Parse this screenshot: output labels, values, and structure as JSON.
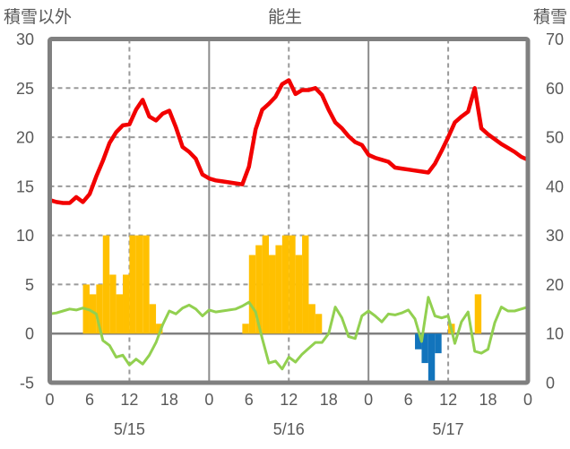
{
  "header": {
    "left_axis_title": "積雪以外",
    "chart_title": "能生",
    "right_axis_title": "積雪"
  },
  "chart_data": {
    "type": "combo",
    "title": "能生",
    "left_axis": {
      "title": "積雪以外",
      "min": -5,
      "max": 30,
      "tick_step": 5,
      "tick_labels": [
        "30",
        "25",
        "20",
        "15",
        "10",
        "5",
        "0",
        "-5"
      ]
    },
    "right_axis": {
      "title": "積雪",
      "min": 0,
      "max": 70,
      "tick_step": 10,
      "tick_labels": [
        "70",
        "60",
        "50",
        "40",
        "30",
        "20",
        "10",
        "0"
      ]
    },
    "x_axis": {
      "total_hours": 72,
      "tick_interval_hours": 6,
      "tick_labels": [
        "0",
        "6",
        "12",
        "18",
        "0",
        "6",
        "12",
        "18",
        "0",
        "6",
        "12",
        "18",
        "0"
      ],
      "day_labels": [
        "5/15",
        "5/16",
        "5/17"
      ],
      "noon_gridline_hours": [
        12,
        36,
        60
      ],
      "midnight_gridline_hours": [
        24,
        48
      ]
    },
    "grid": {
      "horizontal_dashed_left_values": [
        25,
        20,
        15,
        10,
        5
      ],
      "zero_line_left_value": 0
    },
    "series": {
      "red_line": {
        "type": "line",
        "axis": "left",
        "x_start_hour": 0,
        "x_step_hours": 1,
        "values": [
          13.6,
          13.4,
          13.3,
          13.3,
          13.9,
          13.4,
          14.2,
          16.0,
          17.6,
          19.4,
          20.5,
          21.2,
          21.3,
          22.8,
          23.8,
          22.1,
          21.7,
          22.4,
          22.7,
          21.0,
          19.0,
          18.5,
          17.8,
          16.2,
          15.8,
          15.6,
          15.5,
          15.4,
          15.3,
          15.2,
          17.0,
          20.8,
          22.8,
          23.4,
          24.1,
          25.4,
          25.8,
          24.4,
          24.8,
          24.8,
          25.0,
          24.3,
          22.8,
          21.5,
          20.9,
          20.1,
          19.5,
          19.2,
          18.2,
          17.9,
          17.7,
          17.5,
          16.9,
          16.8,
          16.7,
          16.6,
          16.5,
          16.4,
          17.3,
          18.6,
          20.0,
          21.5,
          22.1,
          22.6,
          25.0,
          20.9,
          20.3,
          19.8,
          19.3,
          18.9,
          18.5,
          18.0,
          17.7
        ]
      },
      "green_line": {
        "type": "line",
        "axis": "left",
        "x_start_hour": 0,
        "x_step_hours": 1,
        "values": [
          2.0,
          2.1,
          2.3,
          2.5,
          2.4,
          2.6,
          2.4,
          2.0,
          -0.7,
          -1.2,
          -2.4,
          -2.2,
          -3.2,
          -2.6,
          -3.1,
          -2.2,
          -0.9,
          0.9,
          2.3,
          2.0,
          2.6,
          2.9,
          2.5,
          1.8,
          2.4,
          2.2,
          2.3,
          2.4,
          2.5,
          2.8,
          3.2,
          2.2,
          -0.5,
          -3.0,
          -2.8,
          -3.6,
          -2.4,
          -2.9,
          -2.1,
          -1.5,
          -0.9,
          -0.9,
          0.0,
          2.7,
          1.6,
          -0.3,
          -0.5,
          1.8,
          2.3,
          1.8,
          1.2,
          2.0,
          1.9,
          2.1,
          2.4,
          1.5,
          -0.8,
          3.7,
          1.8,
          1.6,
          1.8,
          -1.0,
          1.2,
          2.2,
          -1.8,
          -2.0,
          -1.6,
          1.1,
          2.7,
          2.3,
          2.3,
          2.5,
          2.7
        ]
      },
      "yellow_bars": {
        "type": "bar",
        "axis": "left",
        "bars": [
          [
            5,
            5
          ],
          [
            6,
            4
          ],
          [
            7,
            5
          ],
          [
            8,
            10
          ],
          [
            9,
            6
          ],
          [
            10,
            4
          ],
          [
            11,
            6
          ],
          [
            12,
            10
          ],
          [
            13,
            10
          ],
          [
            14,
            10
          ],
          [
            15,
            3
          ],
          [
            16,
            1
          ],
          [
            29,
            1
          ],
          [
            30,
            8
          ],
          [
            31,
            9
          ],
          [
            32,
            10
          ],
          [
            33,
            8
          ],
          [
            34,
            9
          ],
          [
            35,
            10
          ],
          [
            36,
            10
          ],
          [
            37,
            8
          ],
          [
            38,
            10
          ],
          [
            39,
            3
          ],
          [
            40,
            2
          ],
          [
            60,
            1
          ],
          [
            64,
            4
          ]
        ]
      },
      "blue_bars": {
        "type": "bar",
        "axis": "left",
        "bars": [
          [
            55,
            -1.6
          ],
          [
            56,
            -3
          ],
          [
            57,
            -5
          ],
          [
            58,
            -2
          ]
        ]
      }
    },
    "colors": {
      "red_line": "#f20000",
      "green_line": "#92d050",
      "yellow_bars": "#ffc000",
      "blue_bars": "#1274bc",
      "frame": "#808080",
      "grid": "#9a9a9a",
      "text": "#595959",
      "background": "#ffffff"
    }
  }
}
